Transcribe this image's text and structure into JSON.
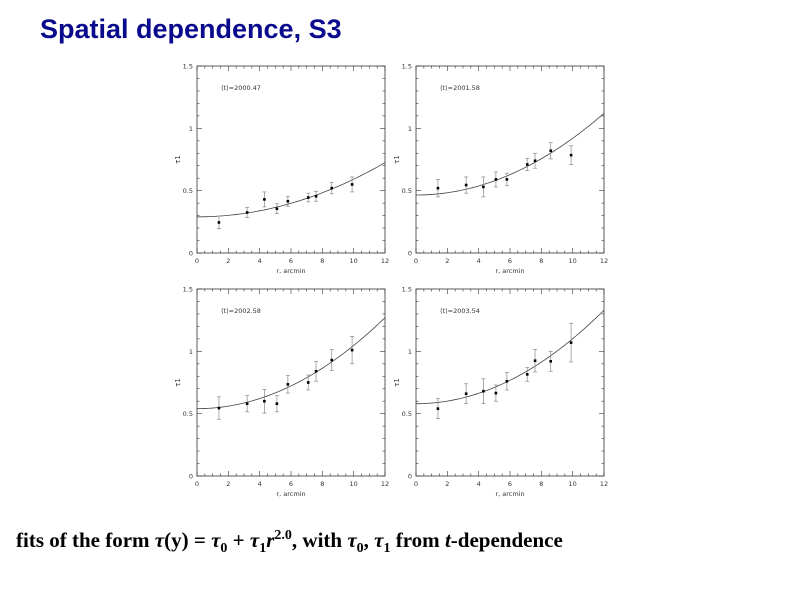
{
  "slide": {
    "title": "Spatial dependence, S3",
    "caption": {
      "prefix": "fits of the form ",
      "tau": "τ",
      "y_arg": "(y)",
      "eq": " = ",
      "tau0_sub": "0",
      "plus": " + ",
      "tau1_sub": "1",
      "r": "r",
      "exp": "2.0",
      "with": ", with ",
      "comma": ", ",
      "from": " from ",
      "t": "t",
      "dependence": "-dependence"
    }
  },
  "chart_data": [
    {
      "type": "scatter",
      "annotation": "⟨t⟩=2000.47",
      "xlabel": "r, arcmin",
      "ylabel": "τ1",
      "xlim": [
        0,
        12
      ],
      "ylim": [
        0,
        1.5
      ],
      "xticks": [
        0,
        2,
        4,
        6,
        8,
        10,
        12
      ],
      "yticks": [
        0,
        0.5,
        1,
        1.5
      ],
      "x": [
        1.4,
        3.2,
        4.3,
        5.1,
        5.8,
        7.1,
        7.6,
        8.6,
        9.9
      ],
      "y": [
        0.245,
        0.325,
        0.43,
        0.355,
        0.415,
        0.445,
        0.455,
        0.52,
        0.55
      ],
      "yerr": [
        0.05,
        0.04,
        0.06,
        0.04,
        0.04,
        0.035,
        0.04,
        0.045,
        0.06
      ],
      "fit": {
        "tau0": 0.29,
        "tau1": 0.00302,
        "power": 2.0
      }
    },
    {
      "type": "scatter",
      "annotation": "⟨t⟩=2001.58",
      "xlabel": "r, arcmin",
      "ylabel": "τ1",
      "xlim": [
        0,
        12
      ],
      "ylim": [
        0,
        1.5
      ],
      "xticks": [
        0,
        2,
        4,
        6,
        8,
        10,
        12
      ],
      "yticks": [
        0,
        0.5,
        1,
        1.5
      ],
      "x": [
        1.4,
        3.2,
        4.3,
        5.1,
        5.8,
        7.1,
        7.6,
        8.6,
        9.9
      ],
      "y": [
        0.52,
        0.545,
        0.53,
        0.59,
        0.59,
        0.71,
        0.74,
        0.82,
        0.785
      ],
      "yerr": [
        0.07,
        0.065,
        0.08,
        0.06,
        0.05,
        0.05,
        0.06,
        0.065,
        0.075
      ],
      "fit": {
        "tau0": 0.465,
        "tau1": 0.00455,
        "power": 2.0
      }
    },
    {
      "type": "scatter",
      "annotation": "⟨t⟩=2002.58",
      "xlabel": "r, arcmin",
      "ylabel": "τ1",
      "xlim": [
        0,
        12
      ],
      "ylim": [
        0,
        1.5
      ],
      "xticks": [
        0,
        2,
        4,
        6,
        8,
        10,
        12
      ],
      "yticks": [
        0,
        0.5,
        1,
        1.5
      ],
      "x": [
        1.4,
        3.2,
        4.3,
        5.1,
        5.8,
        7.1,
        7.6,
        8.6,
        9.9
      ],
      "y": [
        0.545,
        0.58,
        0.6,
        0.58,
        0.735,
        0.75,
        0.84,
        0.93,
        1.01
      ],
      "yerr": [
        0.09,
        0.065,
        0.095,
        0.065,
        0.07,
        0.06,
        0.08,
        0.085,
        0.11
      ],
      "fit": {
        "tau0": 0.54,
        "tau1": 0.00507,
        "power": 2.0
      }
    },
    {
      "type": "scatter",
      "annotation": "⟨t⟩=2003.54",
      "xlabel": "r, arcmin",
      "ylabel": "τ1",
      "xlim": [
        0,
        12
      ],
      "ylim": [
        0,
        1.5
      ],
      "xticks": [
        0,
        2,
        4,
        6,
        8,
        10,
        12
      ],
      "yticks": [
        0,
        0.5,
        1,
        1.5
      ],
      "x": [
        1.4,
        3.2,
        4.3,
        5.1,
        5.8,
        7.1,
        7.6,
        8.6,
        9.9
      ],
      "y": [
        0.54,
        0.66,
        0.68,
        0.665,
        0.76,
        0.815,
        0.925,
        0.92,
        1.07
      ],
      "yerr": [
        0.08,
        0.08,
        0.1,
        0.065,
        0.07,
        0.055,
        0.09,
        0.08,
        0.155
      ],
      "fit": {
        "tau0": 0.58,
        "tau1": 0.00521,
        "power": 2.0
      }
    }
  ]
}
